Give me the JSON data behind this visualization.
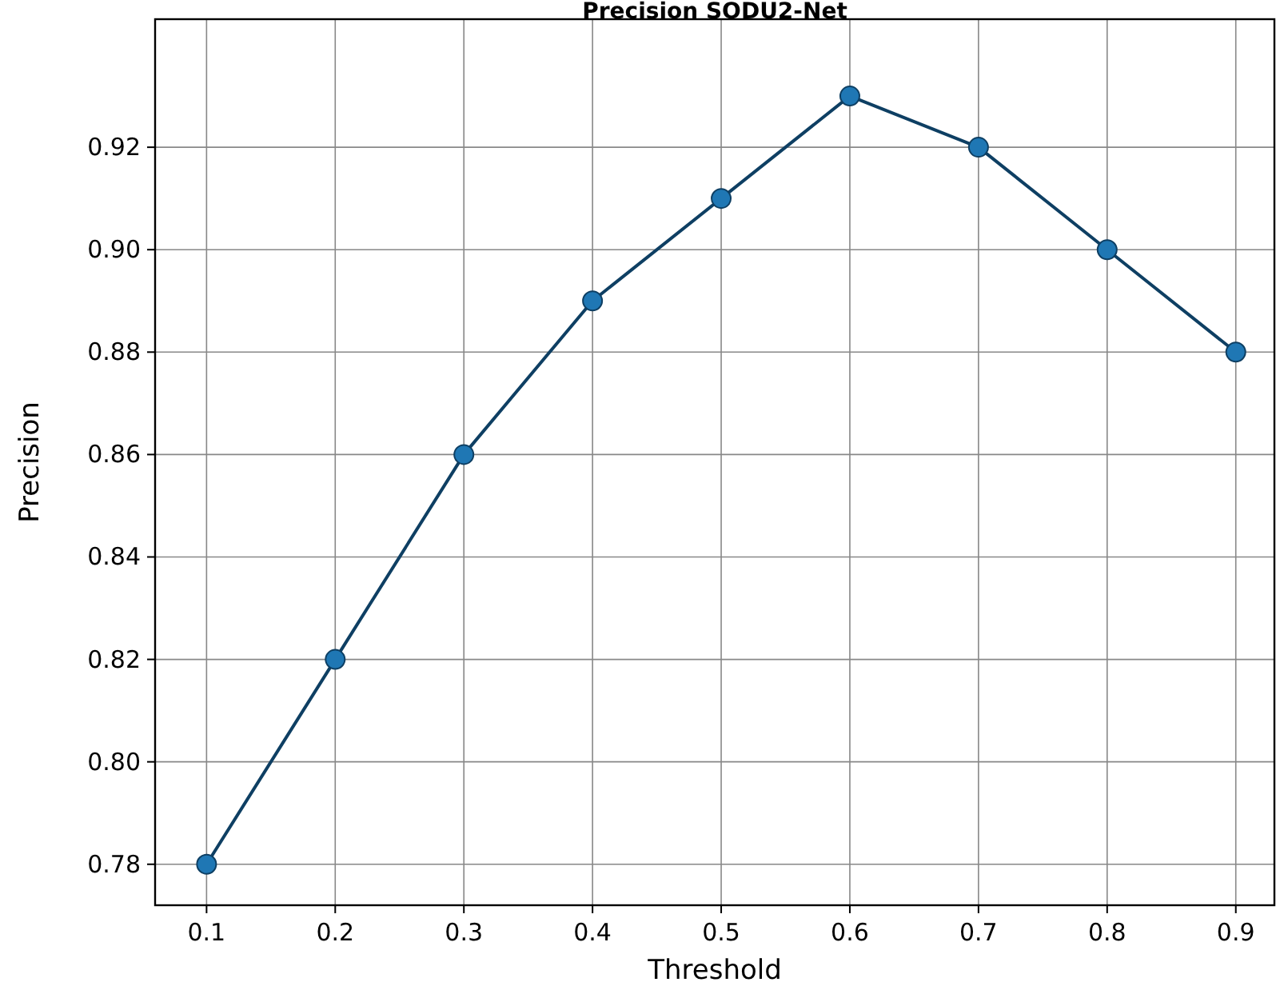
{
  "chart_data": {
    "type": "line",
    "title": "Precision SODU2-Net",
    "xlabel": "Threshold",
    "ylabel": "Precision",
    "x": [
      0.1,
      0.2,
      0.3,
      0.4,
      0.5,
      0.6,
      0.7,
      0.8,
      0.9
    ],
    "series": [
      {
        "color": "#1f77b4",
        "values": [
          0.78,
          0.82,
          0.86,
          0.89,
          0.91,
          0.93,
          0.92,
          0.9,
          0.88
        ]
      }
    ],
    "xlim": [
      0.06,
      0.93
    ],
    "ylim": [
      0.772,
      0.945
    ],
    "xticks": [
      0.1,
      0.2,
      0.3,
      0.4,
      0.5,
      0.6,
      0.7,
      0.8,
      0.9
    ],
    "yticks": [
      {
        "value": 0.78,
        "label": "0.78"
      },
      {
        "value": 0.8,
        "label": "0.80"
      },
      {
        "value": 0.82,
        "label": "0.82"
      },
      {
        "value": 0.84,
        "label": "0.84"
      },
      {
        "value": 0.86,
        "label": "0.86"
      },
      {
        "value": 0.88,
        "label": "0.88"
      },
      {
        "value": 0.9,
        "label": "0.90"
      },
      {
        "value": 0.92,
        "label": "0.92"
      }
    ],
    "grid": true,
    "marker": "circle",
    "line_style": "solid"
  }
}
